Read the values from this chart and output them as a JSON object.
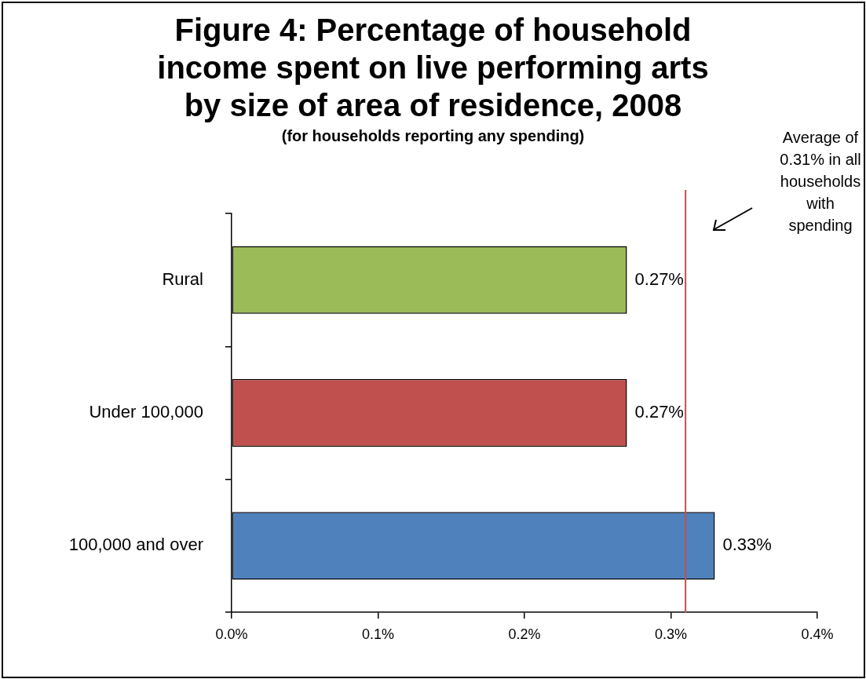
{
  "chart_data": {
    "type": "bar",
    "orientation": "horizontal",
    "title": "Figure 4: Percentage of household income spent on live performing arts by size of area of residence, 2008",
    "subtitle": "(for households reporting any spending)",
    "categories": [
      "Rural",
      "Under 100,000",
      "100,000 and over"
    ],
    "values": [
      0.27,
      0.27,
      0.33
    ],
    "colors": [
      "#9bbb59",
      "#c0504d",
      "#4f81bd"
    ],
    "value_labels": [
      "0.27%",
      "0.27%",
      "0.33%"
    ],
    "xlim": [
      0,
      0.4
    ],
    "xticks": [
      {
        "value": 0,
        "label": "0.0%"
      },
      {
        "value": 0.1,
        "label": "0.1%"
      },
      {
        "value": 0.2,
        "label": "0.2%"
      },
      {
        "value": 0.3,
        "label": "0.3%"
      },
      {
        "value": 0.4,
        "label": "0.4%"
      }
    ],
    "ref_lines": [
      {
        "axis": "x",
        "value": 0.31,
        "color": "#c0504d"
      }
    ],
    "annotations": [
      "Average of 0.31% in all households with spending"
    ]
  }
}
